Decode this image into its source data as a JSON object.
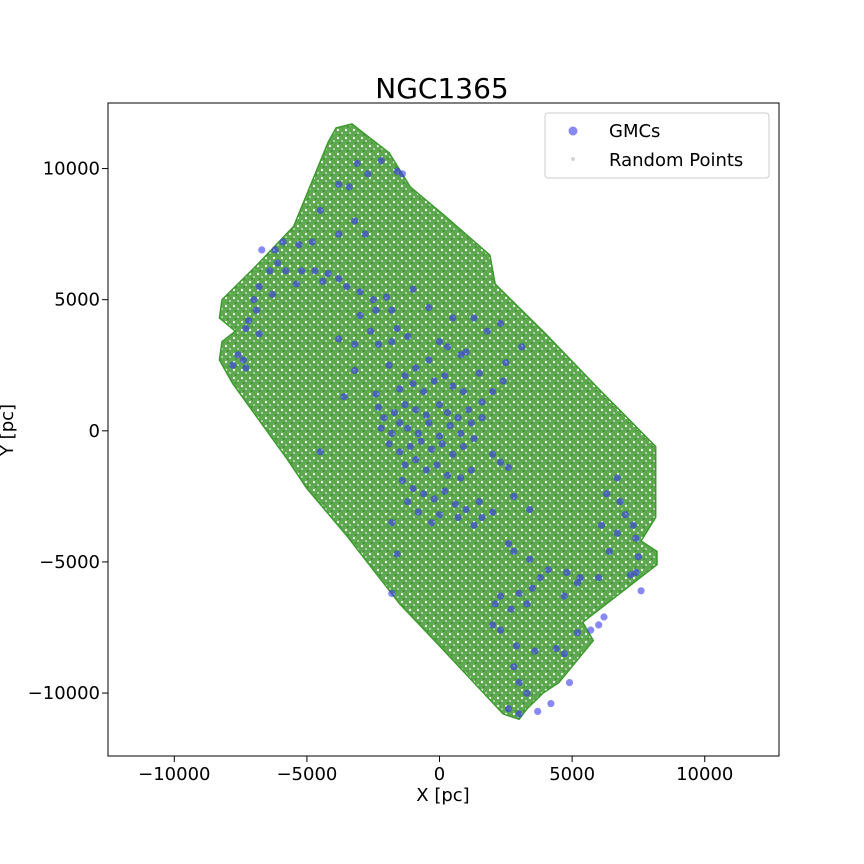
{
  "chart_data": {
    "type": "scatter",
    "title": "NGC1365",
    "xlabel": "X [pc]",
    "ylabel": "Y [pc]",
    "xlim": [
      -12500,
      12800
    ],
    "ylim": [
      -12400,
      12500
    ],
    "xticks": [
      -10000,
      -5000,
      0,
      5000,
      10000
    ],
    "yticks": [
      -10000,
      -5000,
      0,
      5000,
      10000
    ],
    "xtick_labels": [
      "−10000",
      "−5000",
      "0",
      "5000",
      "10000"
    ],
    "ytick_labels": [
      "−10000",
      "−5000",
      "0",
      "5000",
      "10000"
    ],
    "grid": false,
    "legend_position": "top-right",
    "colors": {
      "gmcs": "#3a3aee",
      "random_points": "#2e8b22",
      "footprint": "#3c9a2e"
    },
    "footprint_polygon": [
      [
        -4200,
        11000
      ],
      [
        -3900,
        11550
      ],
      [
        -3300,
        11700
      ],
      [
        -1900,
        10600
      ],
      [
        -1100,
        9300
      ],
      [
        200,
        8200
      ],
      [
        1900,
        6700
      ],
      [
        2100,
        5600
      ],
      [
        4000,
        3700
      ],
      [
        6000,
        1600
      ],
      [
        8150,
        -600
      ],
      [
        8150,
        -3300
      ],
      [
        7600,
        -4200
      ],
      [
        8200,
        -4600
      ],
      [
        8200,
        -5100
      ],
      [
        5400,
        -7300
      ],
      [
        5800,
        -8000
      ],
      [
        4500,
        -9600
      ],
      [
        3900,
        -10000
      ],
      [
        3300,
        -10600
      ],
      [
        3000,
        -11000
      ],
      [
        2400,
        -10800
      ],
      [
        1200,
        -9500
      ],
      [
        0,
        -8200
      ],
      [
        -1500,
        -6600
      ],
      [
        -3500,
        -4000
      ],
      [
        -5000,
        -2200
      ],
      [
        -5800,
        -1000
      ],
      [
        -7800,
        1800
      ],
      [
        -8300,
        2700
      ],
      [
        -8200,
        3400
      ],
      [
        -7700,
        3800
      ],
      [
        -8300,
        4300
      ],
      [
        -8200,
        5000
      ],
      [
        -7000,
        6200
      ],
      [
        -5500,
        7800
      ]
    ],
    "series": [
      {
        "name": "GMCs",
        "marker": "circle",
        "points": [
          [
            -3100,
            10200
          ],
          [
            -2200,
            10300
          ],
          [
            -1600,
            9900
          ],
          [
            -1400,
            9800
          ],
          [
            -3800,
            9400
          ],
          [
            -3400,
            9300
          ],
          [
            -2700,
            9800
          ],
          [
            -4500,
            8400
          ],
          [
            -3200,
            8000
          ],
          [
            -2800,
            7500
          ],
          [
            -3800,
            7500
          ],
          [
            -4800,
            7200
          ],
          [
            -5300,
            7100
          ],
          [
            -5900,
            7200
          ],
          [
            -6200,
            6900
          ],
          [
            -6700,
            6900
          ],
          [
            -6100,
            6400
          ],
          [
            -5800,
            6100
          ],
          [
            -6400,
            6100
          ],
          [
            -5200,
            6100
          ],
          [
            -4700,
            6100
          ],
          [
            -4200,
            6000
          ],
          [
            -3800,
            5800
          ],
          [
            -4400,
            5700
          ],
          [
            -5400,
            5600
          ],
          [
            -6800,
            5500
          ],
          [
            -6300,
            5200
          ],
          [
            -7000,
            5000
          ],
          [
            -6900,
            4600
          ],
          [
            -7200,
            4200
          ],
          [
            -7300,
            3900
          ],
          [
            -6800,
            3700
          ],
          [
            -3500,
            5500
          ],
          [
            -3000,
            5300
          ],
          [
            -2500,
            5000
          ],
          [
            -2000,
            5100
          ],
          [
            -1800,
            4600
          ],
          [
            -2400,
            4600
          ],
          [
            -3000,
            4400
          ],
          [
            -2600,
            3800
          ],
          [
            -1600,
            3900
          ],
          [
            -1200,
            3600
          ],
          [
            -1800,
            3400
          ],
          [
            -2300,
            3300
          ],
          [
            -3200,
            3300
          ],
          [
            -3800,
            3500
          ],
          [
            -7600,
            2900
          ],
          [
            -7400,
            2700
          ],
          [
            -7800,
            2500
          ],
          [
            -7300,
            2400
          ],
          [
            -3200,
            2300
          ],
          [
            -1900,
            2500
          ],
          [
            -1300,
            2100
          ],
          [
            -900,
            2400
          ],
          [
            -400,
            2700
          ],
          [
            0,
            3400
          ],
          [
            300,
            3200
          ],
          [
            800,
            2900
          ],
          [
            1000,
            3000
          ],
          [
            1300,
            4300
          ],
          [
            2300,
            4100
          ],
          [
            3100,
            3200
          ],
          [
            -3600,
            1300
          ],
          [
            -2400,
            1400
          ],
          [
            -1500,
            1600
          ],
          [
            -1000,
            1800
          ],
          [
            -600,
            1500
          ],
          [
            -200,
            1900
          ],
          [
            200,
            2100
          ],
          [
            500,
            1700
          ],
          [
            900,
            1500
          ],
          [
            1500,
            2200
          ],
          [
            2400,
            1900
          ],
          [
            2500,
            2600
          ],
          [
            -2300,
            900
          ],
          [
            -2100,
            500
          ],
          [
            -1700,
            700
          ],
          [
            -1300,
            1000
          ],
          [
            -900,
            800
          ],
          [
            -500,
            600
          ],
          [
            0,
            1000
          ],
          [
            300,
            700
          ],
          [
            700,
            500
          ],
          [
            1100,
            800
          ],
          [
            1600,
            1100
          ],
          [
            2000,
            1500
          ],
          [
            -2200,
            100
          ],
          [
            -1800,
            -100
          ],
          [
            -1500,
            300
          ],
          [
            -1200,
            100
          ],
          [
            -800,
            -100
          ],
          [
            -400,
            300
          ],
          [
            0,
            -200
          ],
          [
            400,
            200
          ],
          [
            800,
            -100
          ],
          [
            1200,
            300
          ],
          [
            1600,
            500
          ],
          [
            -1900,
            -500
          ],
          [
            -1500,
            -800
          ],
          [
            -1100,
            -600
          ],
          [
            -700,
            -400
          ],
          [
            -300,
            -700
          ],
          [
            100,
            -500
          ],
          [
            500,
            -900
          ],
          [
            900,
            -600
          ],
          [
            1300,
            -300
          ],
          [
            -1300,
            -1300
          ],
          [
            -900,
            -1100
          ],
          [
            -500,
            -1500
          ],
          [
            -100,
            -1300
          ],
          [
            300,
            -1700
          ],
          [
            800,
            -1800
          ],
          [
            1200,
            -1500
          ],
          [
            2000,
            -900
          ],
          [
            2300,
            -1200
          ],
          [
            2600,
            -1400
          ],
          [
            -1400,
            -1900
          ],
          [
            -1000,
            -2200
          ],
          [
            -600,
            -2400
          ],
          [
            -200,
            -2600
          ],
          [
            200,
            -2300
          ],
          [
            600,
            -2800
          ],
          [
            1000,
            -3000
          ],
          [
            1500,
            -2700
          ],
          [
            -4500,
            -800
          ],
          [
            -1800,
            -3500
          ],
          [
            -800,
            -3100
          ],
          [
            -300,
            -3500
          ],
          [
            0,
            -3200
          ],
          [
            700,
            -3300
          ],
          [
            1300,
            -3600
          ],
          [
            1600,
            -3300
          ],
          [
            2000,
            -3100
          ],
          [
            2800,
            -2500
          ],
          [
            3400,
            -3000
          ],
          [
            -1600,
            -4700
          ],
          [
            2600,
            -4300
          ],
          [
            2800,
            -4600
          ],
          [
            3400,
            -4900
          ],
          [
            4100,
            -5300
          ],
          [
            4800,
            -5400
          ],
          [
            3800,
            -5600
          ],
          [
            3500,
            -6000
          ],
          [
            3000,
            -6200
          ],
          [
            2300,
            -6300
          ],
          [
            2100,
            -6600
          ],
          [
            2700,
            -6800
          ],
          [
            3300,
            -6600
          ],
          [
            4700,
            -6300
          ],
          [
            5200,
            -5800
          ],
          [
            5300,
            -5600
          ],
          [
            6000,
            -5600
          ],
          [
            6400,
            -4600
          ],
          [
            6700,
            -3900
          ],
          [
            6100,
            -3600
          ],
          [
            6300,
            -2400
          ],
          [
            6800,
            -2700
          ],
          [
            6700,
            -1800
          ],
          [
            7000,
            -3200
          ],
          [
            7300,
            -3600
          ],
          [
            7400,
            -4100
          ],
          [
            7500,
            -4800
          ],
          [
            7200,
            -5500
          ],
          [
            7600,
            -6100
          ],
          [
            7400,
            -5400
          ],
          [
            2000,
            -7400
          ],
          [
            2300,
            -7600
          ],
          [
            2900,
            -8200
          ],
          [
            3600,
            -8400
          ],
          [
            4400,
            -8300
          ],
          [
            4700,
            -8500
          ],
          [
            5200,
            -7700
          ],
          [
            5700,
            -7600
          ],
          [
            6000,
            -7400
          ],
          [
            6200,
            -7100
          ],
          [
            2800,
            -9000
          ],
          [
            3000,
            -9600
          ],
          [
            3300,
            -10000
          ],
          [
            2600,
            -10600
          ],
          [
            3000,
            -10800
          ],
          [
            3700,
            -10700
          ],
          [
            4200,
            -10400
          ],
          [
            4900,
            -9600
          ],
          [
            -1800,
            -6200
          ],
          [
            -1000,
            5400
          ],
          [
            -400,
            4700
          ],
          [
            500,
            4300
          ],
          [
            1800,
            3800
          ],
          [
            -1200,
            -2700
          ]
        ]
      },
      {
        "name": "Random Points",
        "marker": "dot",
        "points": []
      }
    ]
  }
}
